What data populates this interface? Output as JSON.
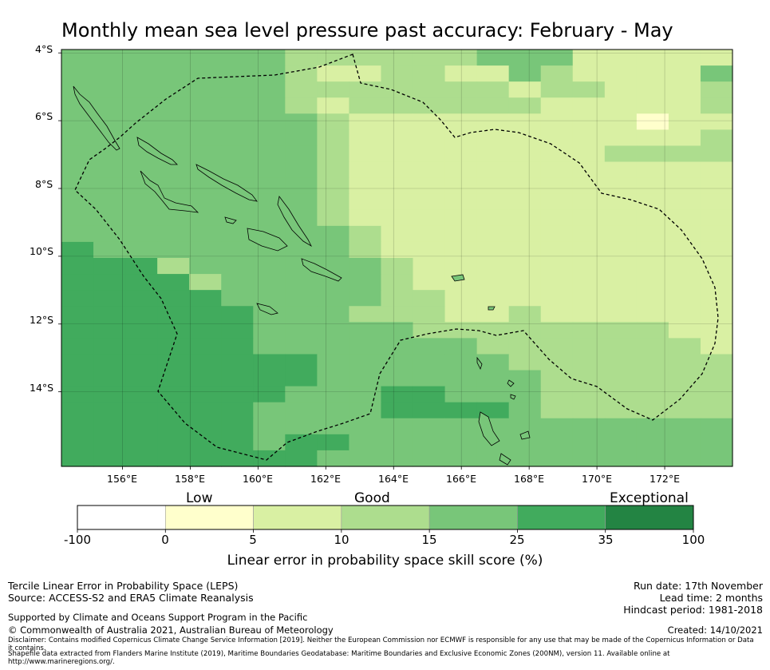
{
  "title": "Monthly mean sea level pressure past accuracy: February - May",
  "map": {
    "lat_labels": [
      "4°S",
      "6°S",
      "8°S",
      "10°S",
      "12°S",
      "14°S"
    ],
    "lon_labels": [
      "156°E",
      "158°E",
      "160°E",
      "162°E",
      "164°E",
      "166°E",
      "168°E",
      "170°E",
      "172°E"
    ],
    "lon_range": [
      154.2,
      174.0
    ],
    "lat_range": [
      -3.9,
      -16.2
    ],
    "categories_shown": [
      "Low",
      "Good",
      "Exceptional"
    ],
    "palette": [
      "#ffffff",
      "#ffffcc",
      "#d9f0a3",
      "#addd8e",
      "#78c679",
      "#41ab5d",
      "#238443"
    ],
    "grid_rows": [
      "444444433333344422222",
      "444444432233224322224",
      "444444433333332332223",
      "444444432333333222223",
      "444444443222222222122",
      "444444443222222222223",
      "444444443222222223333",
      "444444443222222222222",
      "444444443222222222222",
      "444444443222222222222",
      "444444443222222222222",
      "444444444322222222222",
      "544444444322222222222",
      "555344444432222222222",
      "555534444432222222222",
      "555554444433222222222",
      "555555444333223222222",
      "555555444443333333322",
      "555555444444433333332",
      "555555554444443333333",
      "555555554444444333333",
      "555555544455444333333",
      "555555444455554333333",
      "555555444444444444444",
      "555555455444444444444",
      "555555554444444444444"
    ]
  },
  "colorbar": {
    "top_labels": [
      "Low",
      "Good",
      "Exceptional"
    ],
    "ticks": [
      "-100",
      "0",
      "5",
      "10",
      "15",
      "25",
      "35",
      "100"
    ],
    "colors": [
      "#ffffff",
      "#ffffcc",
      "#d9f0a3",
      "#addd8e",
      "#78c679",
      "#41ab5d",
      "#238443"
    ],
    "label": "Linear error in probability space skill score (%)"
  },
  "footer": {
    "method": "Tercile Linear Error in Probability Space (LEPS)",
    "source": "Source: ACCESS-S2 and ERA5 Climate Reanalysis",
    "support": "Supported by Climate and Oceans Support Program in the Pacific",
    "copyright": "© Commonwealth of Australia 2021, Australian Bureau of Meteorology",
    "disclaimer": "Disclaimer: Contains modified Copernicus Climate Change Service Information [2019]. Neither the European Commission nor ECMWF is responsible for any use that may be made of the Copernicus Information or Data it contains.",
    "shapefile": "Shapefile data extracted from Flanders Marine Institute (2019), Maritime Boundaries Geodatabase: Maritime Boundaries and Exclusive Economic Zones (200NM), version 11. Available online at http://www.marineregions.org/.",
    "run_date": "Run date: 17th November",
    "lead_time": "Lead time: 2 months",
    "hindcast": "Hindcast period: 1981-2018",
    "created": "Created: 14/10/2021"
  }
}
